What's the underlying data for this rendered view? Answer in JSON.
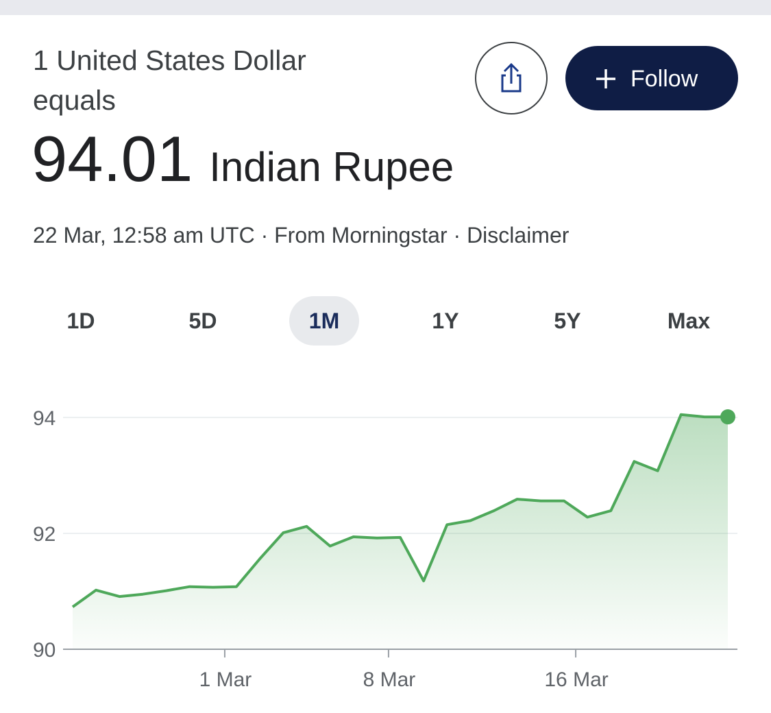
{
  "header": {
    "line1": "1 United States Dollar",
    "line2": "equals",
    "rate": "94.01",
    "currency": "Indian Rupee",
    "meta": "22 Mar, 12:58 am UTC · From Morningstar · Disclaimer",
    "follow": "Follow"
  },
  "tabs": [
    "1D",
    "5D",
    "1M",
    "1Y",
    "5Y",
    "Max"
  ],
  "active_tab": 2,
  "chart_data": {
    "type": "area",
    "categories": [
      null,
      null,
      null,
      null,
      null,
      null,
      null,
      "1 Mar",
      null,
      null,
      null,
      null,
      null,
      null,
      "8 Mar",
      null,
      null,
      null,
      null,
      null,
      null,
      null,
      "16 Mar",
      null,
      null,
      null,
      null,
      null,
      null
    ],
    "values": [
      90.73,
      91.02,
      90.91,
      90.95,
      91.01,
      91.08,
      91.07,
      91.08,
      91.56,
      92.01,
      92.12,
      91.78,
      91.94,
      91.92,
      91.93,
      91.18,
      92.15,
      92.22,
      92.39,
      92.59,
      92.56,
      92.56,
      92.28,
      92.39,
      93.24,
      93.08,
      94.05,
      94.01,
      94.01
    ],
    "color": "#4ea85a",
    "ylim": [
      90,
      94.2
    ],
    "yticks": [
      90,
      92,
      94
    ],
    "grid": true,
    "end_marker": true
  }
}
